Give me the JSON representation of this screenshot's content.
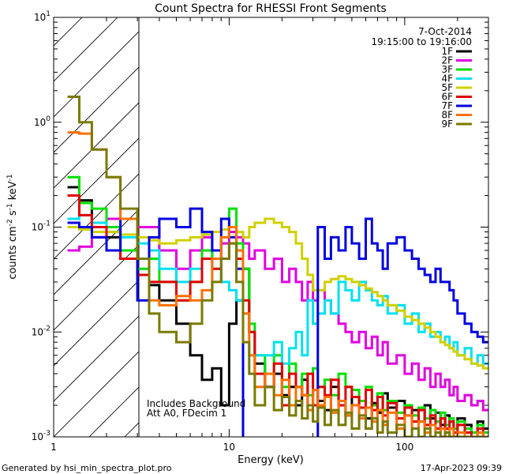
{
  "chart_data": {
    "type": "line",
    "title": "Count Spectra for RHESSI Front Segments",
    "xlabel": "Energy (keV)",
    "ylabel_parts": {
      "base": "counts cm",
      "exp1": "-2",
      "mid": " s",
      "exp2": "-1",
      "unit": " keV",
      "exp3": "-1"
    },
    "x_scale": "log",
    "y_scale": "log",
    "xlim": [
      1,
      300
    ],
    "ylim": [
      0.001,
      10
    ],
    "x_ticks": [
      {
        "value": 1,
        "label": "1"
      },
      {
        "value": 10,
        "label": "10"
      },
      {
        "value": 100,
        "label": "100"
      }
    ],
    "y_ticks": [
      {
        "value": 10,
        "base": "10",
        "exp": "1"
      },
      {
        "value": 1,
        "base": "10",
        "exp": "0"
      },
      {
        "value": 0.1,
        "base": "10",
        "exp": "-1"
      },
      {
        "value": 0.01,
        "base": "10",
        "exp": "-2"
      },
      {
        "value": 0.001,
        "base": "10",
        "exp": "-3"
      }
    ],
    "hatched_region_keV": [
      1,
      3
    ],
    "legend_header": [
      "7-Oct-2014",
      "19:15:00 to 19:16:00"
    ],
    "annotations": [
      "Includes Background",
      "Att A0, FDecim 1"
    ],
    "series": [
      {
        "name": "1F",
        "color": "#000000",
        "edges": [
          1.2,
          1.4,
          1.65,
          2.0,
          2.4,
          3.0,
          3.5,
          4,
          5,
          6,
          7,
          8,
          9,
          10,
          11,
          12,
          13,
          14,
          16,
          18,
          20,
          22,
          24,
          26,
          28,
          30,
          32,
          35,
          38,
          42,
          46,
          50,
          55,
          60,
          65,
          70,
          75,
          80,
          90,
          100,
          110,
          120,
          130,
          140,
          150,
          160,
          170,
          180,
          190,
          200,
          220,
          240,
          260,
          280,
          300
        ],
        "values": [
          0.24,
          0.18,
          0.11,
          0.08,
          0.05,
          0.035,
          0.028,
          0.02,
          0.012,
          0.006,
          0.0035,
          0.0045,
          0.002,
          0.012,
          0.02,
          0.04,
          0.01,
          0.005,
          0.003,
          0.004,
          0.0025,
          0.003,
          0.002,
          0.0035,
          0.002,
          0.0028,
          0.0022,
          0.0018,
          0.003,
          0.002,
          0.0016,
          0.0024,
          0.0019,
          0.0015,
          0.0021,
          0.0017,
          0.0026,
          0.0019,
          0.0022,
          0.0016,
          0.0018,
          0.0014,
          0.002,
          0.0015,
          0.0017,
          0.0013,
          0.0016,
          0.0014,
          0.0012,
          0.0015,
          0.0013,
          0.0011,
          0.0014,
          0.0012
        ]
      },
      {
        "name": "2F",
        "color": "#e000e0",
        "edges": [
          1.2,
          1.4,
          1.65,
          2.0,
          2.4,
          3.0,
          3.5,
          4,
          5,
          6,
          7,
          8,
          9,
          10,
          11,
          12,
          13,
          14,
          16,
          18,
          20,
          22,
          24,
          26,
          28,
          30,
          32,
          35,
          38,
          42,
          46,
          50,
          55,
          60,
          65,
          70,
          75,
          80,
          90,
          100,
          110,
          120,
          130,
          140,
          150,
          160,
          170,
          180,
          190,
          200,
          220,
          240,
          260,
          280,
          300
        ],
        "values": [
          0.06,
          0.065,
          0.08,
          0.12,
          0.12,
          0.1,
          0.1,
          0.06,
          0.04,
          0.06,
          0.08,
          0.05,
          0.07,
          0.09,
          0.08,
          0.07,
          0.05,
          0.06,
          0.04,
          0.05,
          0.03,
          0.04,
          0.03,
          0.02,
          0.03,
          0.02,
          0.025,
          0.02,
          0.015,
          0.012,
          0.01,
          0.008,
          0.01,
          0.007,
          0.009,
          0.006,
          0.008,
          0.005,
          0.006,
          0.004,
          0.005,
          0.0035,
          0.0045,
          0.003,
          0.004,
          0.003,
          0.0035,
          0.0025,
          0.003,
          0.0022,
          0.0025,
          0.002,
          0.0022,
          0.0018
        ]
      },
      {
        "name": "3F",
        "color": "#00e000",
        "edges": [
          1.2,
          1.4,
          1.65,
          2.0,
          2.4,
          3.0,
          3.5,
          4,
          5,
          6,
          7,
          8,
          9,
          10,
          11,
          12,
          13,
          14,
          16,
          18,
          20,
          22,
          24,
          26,
          28,
          30,
          32,
          35,
          38,
          42,
          46,
          50,
          55,
          60,
          65,
          70,
          75,
          80,
          90,
          100,
          110,
          120,
          130,
          140,
          150,
          160,
          170,
          180,
          190,
          200,
          220,
          240,
          260,
          280,
          300
        ],
        "values": [
          0.3,
          0.17,
          0.15,
          0.1,
          0.06,
          0.04,
          0.05,
          0.03,
          0.02,
          0.03,
          0.06,
          0.05,
          0.08,
          0.15,
          0.07,
          0.04,
          0.012,
          0.006,
          0.004,
          0.006,
          0.003,
          0.005,
          0.003,
          0.004,
          0.0025,
          0.0045,
          0.003,
          0.0035,
          0.0025,
          0.004,
          0.003,
          0.0028,
          0.0022,
          0.003,
          0.002,
          0.0026,
          0.0018,
          0.0022,
          0.0017,
          0.002,
          0.0016,
          0.0019,
          0.0015,
          0.0018,
          0.0014,
          0.0017,
          0.0013,
          0.0015,
          0.0012,
          0.0014,
          0.0012,
          0.0011,
          0.0013,
          0.0011
        ]
      },
      {
        "name": "4F",
        "color": "#00e0f0",
        "edges": [
          1.2,
          1.4,
          1.65,
          2.0,
          2.4,
          3.0,
          3.5,
          4,
          5,
          6,
          7,
          8,
          9,
          10,
          11,
          12,
          13,
          14,
          16,
          18,
          20,
          22,
          24,
          26,
          28,
          30,
          32,
          35,
          38,
          42,
          46,
          50,
          55,
          60,
          65,
          70,
          75,
          80,
          90,
          100,
          110,
          120,
          130,
          140,
          150,
          160,
          170,
          180,
          190,
          200,
          220,
          240,
          260,
          280,
          300
        ],
        "values": [
          0.12,
          0.13,
          0.11,
          0.09,
          0.08,
          0.07,
          0.06,
          0.04,
          0.03,
          0.04,
          0.05,
          0.04,
          0.03,
          0.025,
          0.02,
          0.015,
          0.01,
          0.006,
          0.006,
          0.008,
          0.005,
          0.007,
          0.01,
          0.006,
          0.02,
          0.012,
          0.015,
          0.02,
          0.015,
          0.03,
          0.025,
          0.02,
          0.03,
          0.025,
          0.02,
          0.018,
          0.022,
          0.015,
          0.018,
          0.012,
          0.015,
          0.01,
          0.012,
          0.009,
          0.01,
          0.008,
          0.009,
          0.007,
          0.008,
          0.006,
          0.007,
          0.005,
          0.006,
          0.005
        ]
      },
      {
        "name": "5F",
        "color": "#d0d000",
        "edges": [
          1.2,
          1.4,
          1.65,
          2.0,
          2.4,
          3.0,
          3.5,
          4,
          5,
          6,
          7,
          8,
          9,
          10,
          11,
          12,
          13,
          14,
          16,
          18,
          20,
          22,
          24,
          26,
          28,
          30,
          32,
          35,
          38,
          42,
          46,
          50,
          55,
          60,
          65,
          70,
          75,
          80,
          90,
          100,
          110,
          120,
          130,
          140,
          150,
          160,
          170,
          180,
          190,
          200,
          220,
          240,
          260,
          280,
          300
        ],
        "values": [
          0.1,
          0.095,
          0.09,
          0.09,
          0.085,
          0.08,
          0.075,
          0.07,
          0.075,
          0.08,
          0.085,
          0.09,
          0.095,
          0.1,
          0.09,
          0.08,
          0.1,
          0.11,
          0.12,
          0.11,
          0.1,
          0.09,
          0.07,
          0.05,
          0.035,
          0.025,
          0.025,
          0.03,
          0.032,
          0.034,
          0.032,
          0.03,
          0.028,
          0.026,
          0.024,
          0.022,
          0.02,
          0.018,
          0.016,
          0.014,
          0.013,
          0.012,
          0.011,
          0.01,
          0.009,
          0.008,
          0.0075,
          0.007,
          0.0065,
          0.006,
          0.0055,
          0.005,
          0.0048,
          0.0045
        ]
      },
      {
        "name": "6F",
        "color": "#e00000",
        "edges": [
          1.2,
          1.4,
          1.65,
          2.0,
          2.4,
          3.0,
          3.5,
          4,
          5,
          6,
          7,
          8,
          9,
          10,
          11,
          12,
          13,
          14,
          16,
          18,
          20,
          22,
          24,
          26,
          28,
          30,
          32,
          35,
          38,
          42,
          46,
          50,
          55,
          60,
          65,
          70,
          75,
          80,
          90,
          100,
          110,
          120,
          130,
          140,
          150,
          160,
          170,
          180,
          190,
          200,
          220,
          240,
          260,
          280,
          300
        ],
        "values": [
          0.2,
          0.13,
          0.1,
          0.06,
          0.05,
          0.035,
          0.03,
          0.03,
          0.02,
          0.03,
          0.05,
          0.04,
          0.05,
          0.07,
          0.05,
          0.02,
          0.01,
          0.004,
          0.003,
          0.005,
          0.002,
          0.004,
          0.003,
          0.0025,
          0.004,
          0.002,
          0.003,
          0.0025,
          0.0035,
          0.002,
          0.003,
          0.0024,
          0.0019,
          0.0028,
          0.0018,
          0.0024,
          0.0016,
          0.0021,
          0.0015,
          0.0019,
          0.0014,
          0.0018,
          0.0013,
          0.0016,
          0.0012,
          0.0015,
          0.0012,
          0.0014,
          0.0011,
          0.0013,
          0.0011,
          0.001,
          0.0012,
          0.001
        ]
      },
      {
        "name": "7F",
        "color": "#0000e0",
        "edges": [
          1.2,
          1.4,
          1.65,
          2.0,
          2.4,
          3.0,
          3.5,
          4,
          5,
          6,
          7,
          8,
          9,
          10,
          11,
          12,
          13,
          14,
          16,
          18,
          20,
          22,
          24,
          26,
          28,
          30,
          32,
          35,
          38,
          42,
          46,
          50,
          55,
          60,
          65,
          70,
          75,
          80,
          90,
          100,
          110,
          120,
          130,
          140,
          150,
          160,
          170,
          180,
          190,
          200,
          220,
          240,
          260,
          280,
          300
        ],
        "values": [
          0.11,
          0.1,
          0.08,
          0.06,
          0.12,
          0.02,
          0.08,
          0.12,
          0.1,
          0.15,
          0.09,
          0.06,
          0.12,
          0.08,
          0.04,
          0.0009,
          0.0009,
          0.0009,
          0.0009,
          0.0009,
          0.0009,
          0.0009,
          0.0009,
          0.0009,
          0.0009,
          0.0009,
          0.1,
          0.05,
          0.08,
          0.06,
          0.1,
          0.07,
          0.05,
          0.12,
          0.07,
          0.06,
          0.04,
          0.07,
          0.08,
          0.06,
          0.05,
          0.04,
          0.035,
          0.03,
          0.04,
          0.03,
          0.03,
          0.025,
          0.02,
          0.015,
          0.012,
          0.01,
          0.009,
          0.008
        ]
      },
      {
        "name": "8F",
        "color": "#ff7000",
        "edges": [
          1.2,
          1.4,
          1.65,
          2.0,
          2.4,
          3.0,
          3.5,
          4,
          5,
          6,
          7,
          8,
          9,
          10,
          11,
          12,
          13,
          14,
          16,
          18,
          20,
          22,
          24,
          26,
          28,
          30,
          32,
          35,
          38,
          42,
          46,
          50,
          55,
          60,
          65,
          70,
          75,
          80,
          90,
          100,
          110,
          120,
          130,
          140,
          150,
          160,
          170,
          180,
          190,
          200,
          220,
          240,
          260,
          280,
          300
        ],
        "values": [
          0.8,
          0.78,
          0.55,
          0.3,
          0.12,
          0.05,
          0.02,
          0.018,
          0.022,
          0.02,
          0.025,
          0.05,
          0.08,
          0.1,
          0.06,
          0.015,
          0.006,
          0.003,
          0.004,
          0.0025,
          0.0035,
          0.002,
          0.003,
          0.0025,
          0.0018,
          0.0028,
          0.002,
          0.0024,
          0.0017,
          0.0022,
          0.0016,
          0.002,
          0.0015,
          0.0019,
          0.0014,
          0.0018,
          0.0013,
          0.0017,
          0.0012,
          0.0016,
          0.0012,
          0.0014,
          0.0011,
          0.0013,
          0.0011,
          0.0012,
          0.001,
          0.0012,
          0.001,
          0.0011,
          0.001,
          0.001,
          0.0011,
          0.001
        ]
      },
      {
        "name": "9F",
        "color": "#7a7a00",
        "edges": [
          1.2,
          1.4,
          1.65,
          2.0,
          2.4,
          3.0,
          3.5,
          4,
          5,
          6,
          7,
          8,
          9,
          10,
          11,
          12,
          13,
          14,
          16,
          18,
          20,
          22,
          24,
          26,
          28,
          30,
          32,
          35,
          38,
          42,
          46,
          50,
          55,
          60,
          65,
          70,
          75,
          80,
          90,
          100,
          110,
          120,
          130,
          140,
          150,
          160,
          170,
          180,
          190,
          200,
          220,
          240,
          260,
          280,
          300
        ],
        "values": [
          1.75,
          1.0,
          0.55,
          0.3,
          0.15,
          0.05,
          0.015,
          0.01,
          0.008,
          0.012,
          0.02,
          0.03,
          0.05,
          0.07,
          0.03,
          0.008,
          0.004,
          0.002,
          0.003,
          0.0018,
          0.0024,
          0.0016,
          0.0022,
          0.0015,
          0.002,
          0.0014,
          0.0019,
          0.0013,
          0.0018,
          0.0013,
          0.0017,
          0.0012,
          0.0016,
          0.0012,
          0.0015,
          0.0011,
          0.0014,
          0.0011,
          0.0013,
          0.001,
          0.0012,
          0.001,
          0.0012,
          0.001,
          0.0011,
          0.001,
          0.0011,
          0.001,
          0.001,
          0.001,
          0.001,
          0.001,
          0.001,
          0.001
        ]
      }
    ]
  },
  "footer": {
    "left": "Generated by hsi_min_spectra_plot.pro",
    "right": "17-Apr-2023 09:39"
  }
}
